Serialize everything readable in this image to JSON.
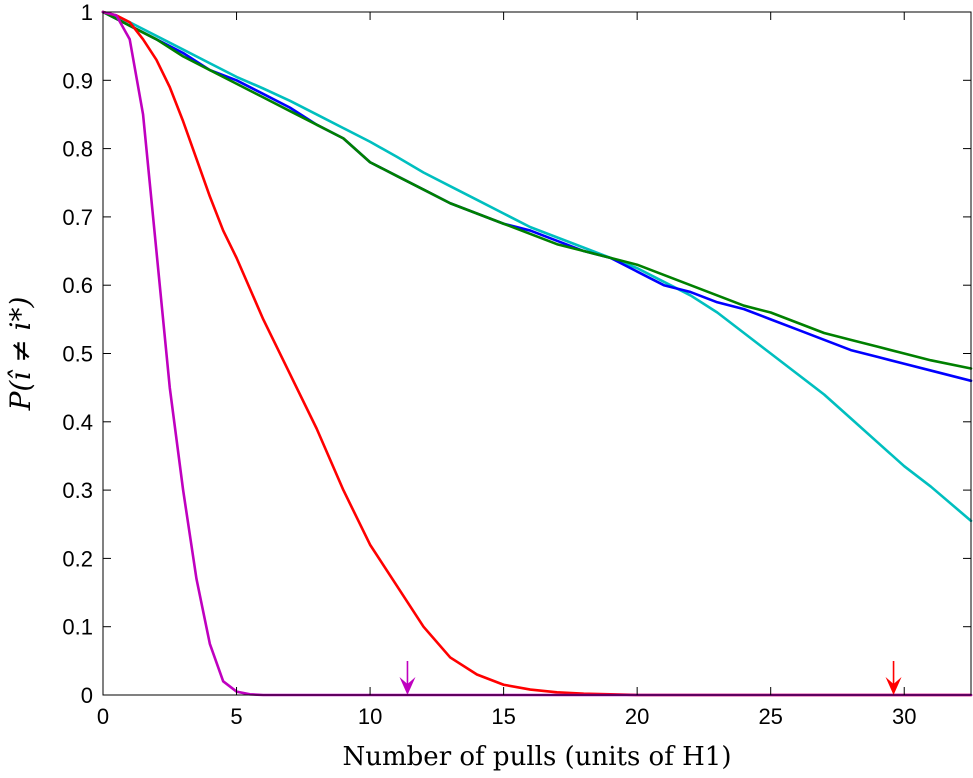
{
  "chart_data": {
    "type": "line",
    "title": "",
    "xlabel": "Number of pulls (units of H1)",
    "ylabel": "P(î ≠ i*)",
    "xlim": [
      0,
      32.5
    ],
    "ylim": [
      0,
      1
    ],
    "xticks": [
      0,
      5,
      10,
      15,
      20,
      25,
      30
    ],
    "yticks": [
      0,
      0.1,
      0.2,
      0.3,
      0.4,
      0.5,
      0.6,
      0.7,
      0.8,
      0.9,
      1
    ],
    "grid": false,
    "legend": "none",
    "series": [
      {
        "color": "#00BFBF",
        "x": [
          0,
          1,
          2,
          3,
          4,
          5,
          6,
          7,
          8,
          9,
          10,
          11,
          12,
          13,
          14,
          15,
          16,
          17,
          18,
          19,
          20,
          21,
          22,
          23,
          24,
          25,
          26,
          27,
          28,
          29,
          30,
          31,
          32.5
        ],
        "y": [
          1.0,
          0.985,
          0.965,
          0.945,
          0.925,
          0.905,
          0.888,
          0.87,
          0.85,
          0.83,
          0.81,
          0.788,
          0.765,
          0.745,
          0.725,
          0.705,
          0.685,
          0.67,
          0.655,
          0.64,
          0.625,
          0.605,
          0.585,
          0.56,
          0.53,
          0.5,
          0.47,
          0.44,
          0.405,
          0.37,
          0.335,
          0.305,
          0.255
        ]
      },
      {
        "color": "#0000FF",
        "x": [
          0,
          1,
          2,
          3,
          4,
          5,
          6,
          7,
          8,
          9,
          10,
          11,
          12,
          13,
          14,
          15,
          16,
          17,
          18,
          19,
          20,
          21,
          22,
          23,
          24,
          25,
          26,
          27,
          28,
          29,
          30,
          31,
          32.5
        ],
        "y": [
          1.0,
          0.98,
          0.96,
          0.94,
          0.915,
          0.9,
          0.88,
          0.86,
          0.835,
          0.815,
          0.78,
          0.76,
          0.74,
          0.72,
          0.705,
          0.69,
          0.68,
          0.665,
          0.65,
          0.64,
          0.62,
          0.6,
          0.59,
          0.575,
          0.565,
          0.55,
          0.535,
          0.52,
          0.505,
          0.495,
          0.485,
          0.475,
          0.46
        ]
      },
      {
        "color": "#008000",
        "x": [
          0,
          1,
          2,
          3,
          4,
          5,
          6,
          7,
          8,
          9,
          10,
          11,
          12,
          13,
          14,
          15,
          16,
          17,
          18,
          19,
          20,
          21,
          22,
          23,
          24,
          25,
          26,
          27,
          28,
          29,
          30,
          31,
          32.5
        ],
        "y": [
          1.0,
          0.98,
          0.96,
          0.935,
          0.915,
          0.895,
          0.875,
          0.855,
          0.835,
          0.815,
          0.78,
          0.76,
          0.74,
          0.72,
          0.705,
          0.69,
          0.675,
          0.66,
          0.65,
          0.64,
          0.63,
          0.615,
          0.6,
          0.585,
          0.57,
          0.56,
          0.545,
          0.53,
          0.52,
          0.51,
          0.5,
          0.49,
          0.478
        ]
      },
      {
        "color": "#FF0000",
        "x": [
          0,
          0.5,
          1,
          1.5,
          2,
          2.5,
          3,
          3.5,
          4,
          4.5,
          5,
          6,
          7,
          8,
          9,
          10,
          11,
          12,
          13,
          14,
          15,
          16,
          17,
          18,
          19,
          20,
          22,
          25,
          28,
          32.5
        ],
        "y": [
          1.0,
          0.995,
          0.985,
          0.96,
          0.93,
          0.89,
          0.84,
          0.785,
          0.73,
          0.68,
          0.64,
          0.55,
          0.47,
          0.39,
          0.3,
          0.22,
          0.16,
          0.1,
          0.055,
          0.03,
          0.015,
          0.008,
          0.004,
          0.002,
          0.001,
          0.0,
          0.0,
          0.0,
          0.0,
          0.0
        ]
      },
      {
        "color": "#BF00BF",
        "x": [
          0,
          0.5,
          1,
          1.5,
          2,
          2.5,
          3,
          3.5,
          4,
          4.5,
          5,
          5.5,
          6,
          10,
          15,
          20,
          25,
          32.5
        ],
        "y": [
          1.0,
          0.995,
          0.96,
          0.85,
          0.65,
          0.45,
          0.3,
          0.17,
          0.075,
          0.02,
          0.005,
          0.001,
          0.0,
          0.0,
          0.0,
          0.0,
          0.0,
          0.0
        ]
      }
    ],
    "annotations": [
      {
        "type": "arrow",
        "x": 11.4,
        "y": 0,
        "color": "#BF00BF"
      },
      {
        "type": "arrow",
        "x": 29.6,
        "y": 0,
        "color": "#FF0000"
      }
    ]
  }
}
